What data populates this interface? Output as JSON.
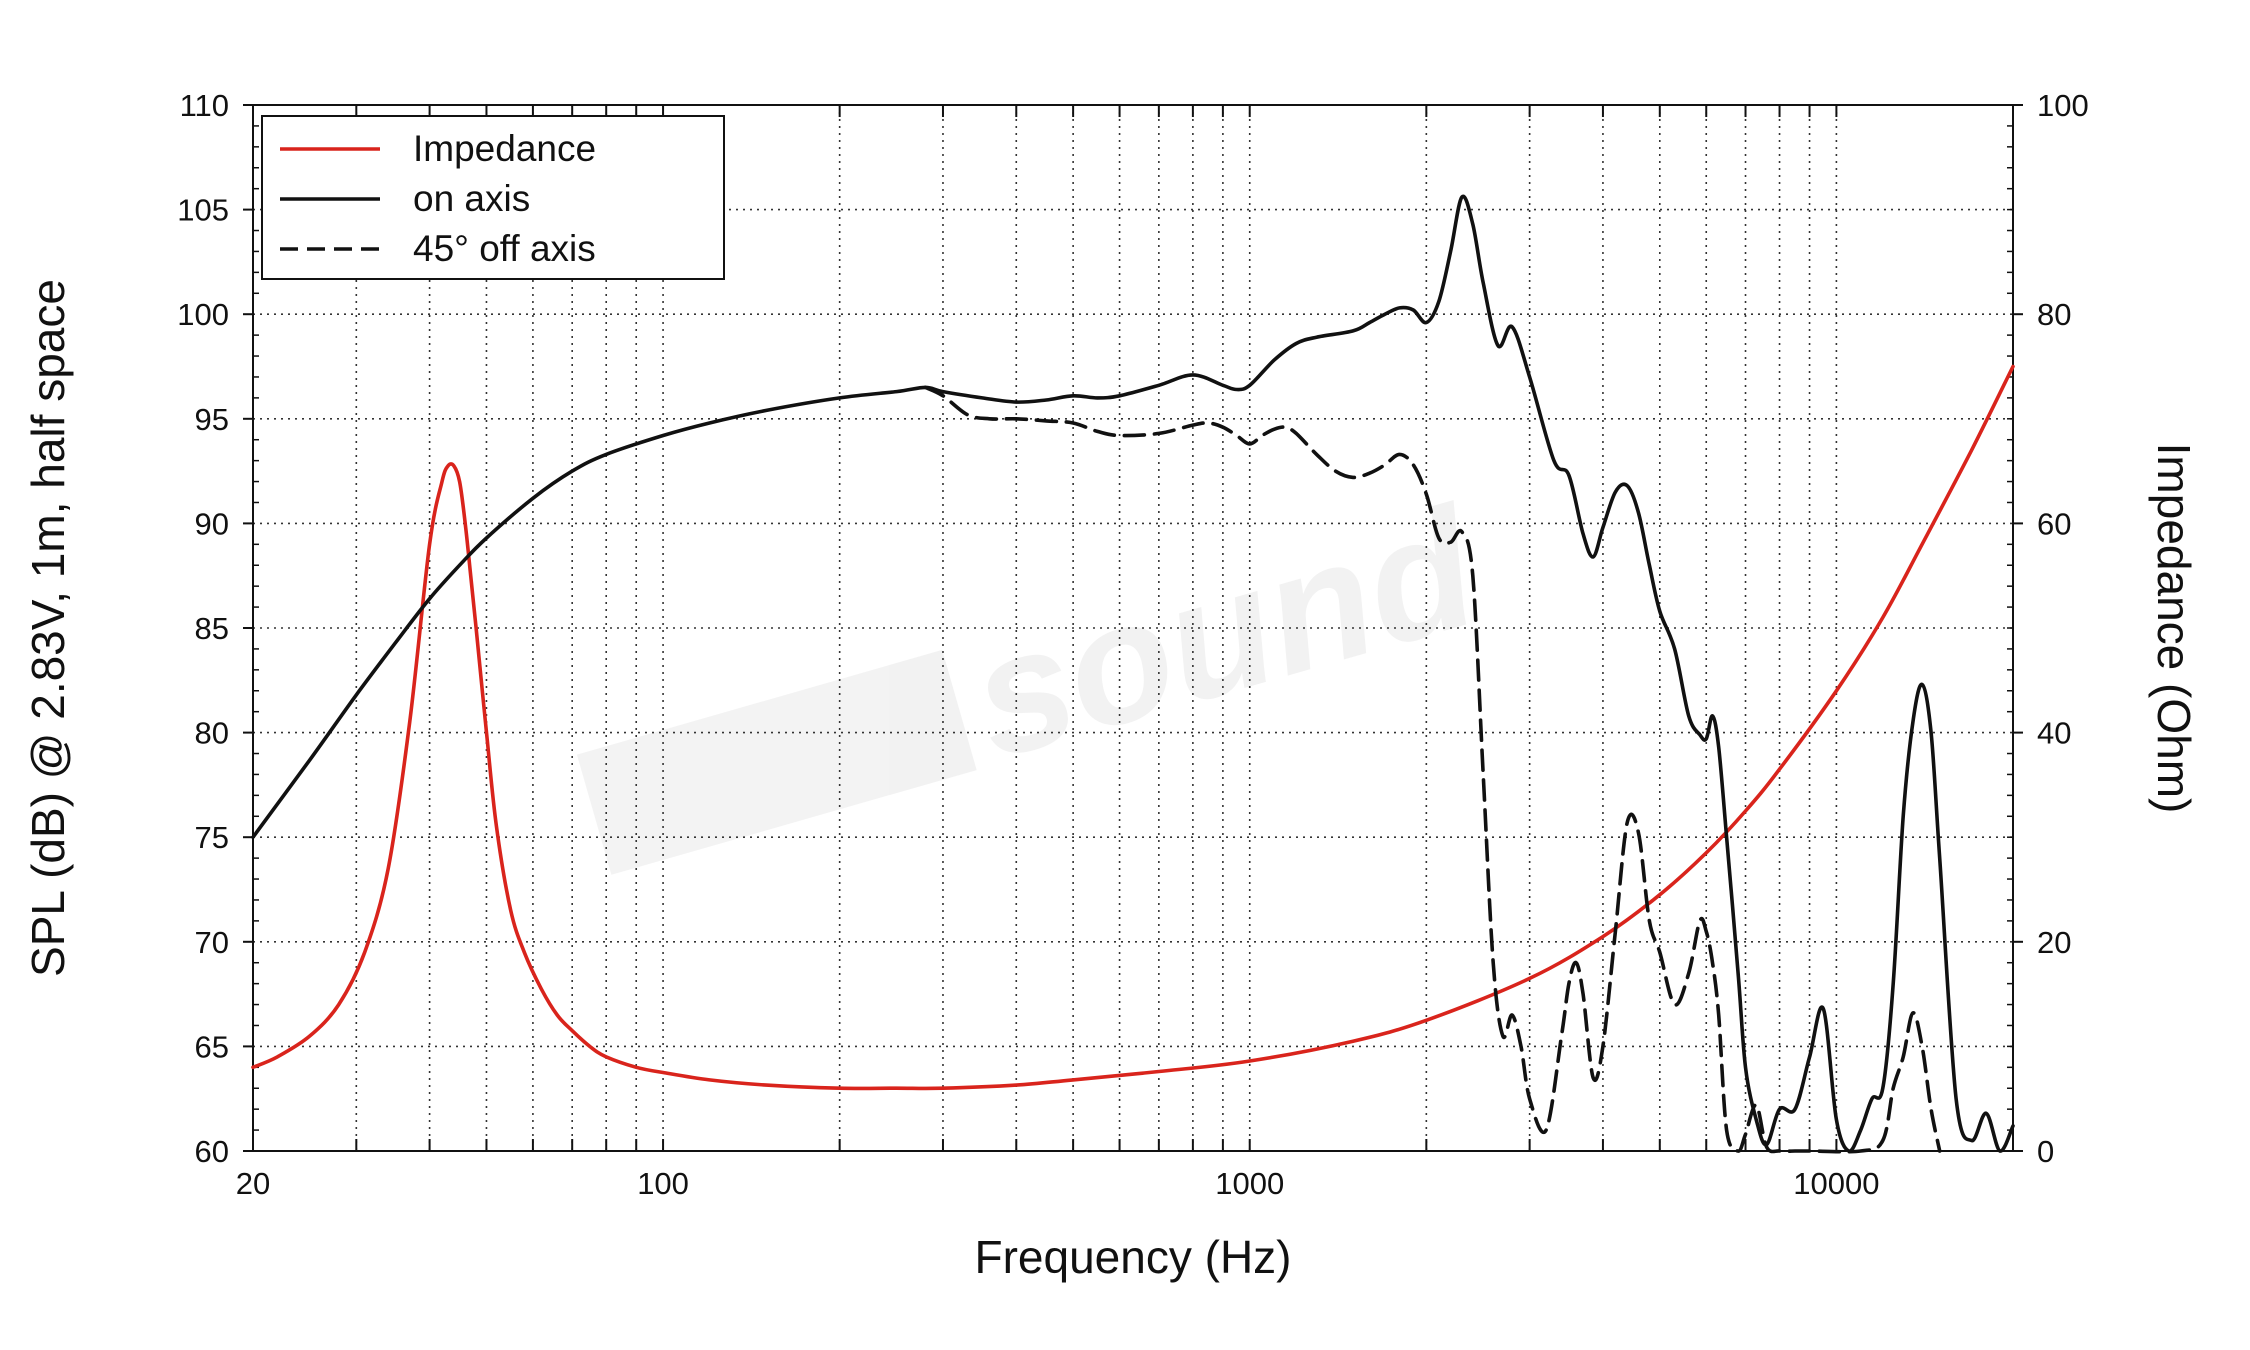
{
  "chart_data": {
    "type": "line",
    "xlabel": "Frequency (Hz)",
    "ylabel": "SPL (dB) @ 2.83V, 1m, half space",
    "y2label": "Impedance (Ohm)",
    "x_scale": "log",
    "xlim": [
      20,
      20000
    ],
    "ylim": [
      60,
      110
    ],
    "y2lim": [
      0,
      100
    ],
    "x_ticks": [
      20,
      100,
      1000,
      10000
    ],
    "x_tick_labels": [
      "20",
      "100",
      "1000",
      "10000"
    ],
    "y_ticks": [
      60,
      65,
      70,
      75,
      80,
      85,
      90,
      95,
      100,
      105,
      110
    ],
    "y2_ticks": [
      0,
      20,
      40,
      60,
      80,
      100
    ],
    "grid": true,
    "legend_position": "top-left",
    "watermark": "sound",
    "series": [
      {
        "name": "Impedance",
        "axis": "right",
        "color": "#d9241c",
        "dash": "solid",
        "x": [
          20,
          22,
          25,
          28,
          31,
          34,
          37,
          40,
          42,
          43,
          44,
          45,
          46,
          47,
          48,
          50,
          52,
          55,
          58,
          62,
          66,
          70,
          75,
          80,
          90,
          100,
          120,
          150,
          200,
          250,
          300,
          400,
          500,
          700,
          1000,
          1500,
          2000,
          3000,
          4000,
          5000,
          6000,
          7000,
          8000,
          10000,
          12000,
          14000,
          17000,
          20000
        ],
        "values": [
          8,
          9,
          11,
          14,
          19,
          27,
          41,
          58,
          64,
          65.5,
          65.5,
          64,
          60,
          55,
          50,
          40,
          31,
          23,
          19,
          15.5,
          13,
          11.5,
          10,
          9,
          8,
          7.5,
          6.8,
          6.3,
          6,
          6,
          6,
          6.3,
          6.8,
          7.6,
          8.6,
          10.5,
          12.5,
          16.5,
          20.5,
          24.5,
          28.5,
          32.5,
          36.5,
          44,
          51,
          58,
          67,
          75
        ]
      },
      {
        "name": "on axis",
        "axis": "left",
        "color": "#111111",
        "dash": "solid",
        "x": [
          20,
          25,
          30,
          35,
          40,
          45,
          50,
          60,
          70,
          80,
          100,
          120,
          150,
          200,
          250,
          280,
          300,
          350,
          400,
          450,
          500,
          550,
          600,
          700,
          800,
          900,
          950,
          1000,
          1100,
          1200,
          1300,
          1500,
          1600,
          1700,
          1800,
          1900,
          2000,
          2100,
          2200,
          2300,
          2400,
          2500,
          2650,
          2800,
          3000,
          3300,
          3500,
          3700,
          3850,
          4000,
          4200,
          4400,
          4600,
          4800,
          5000,
          5300,
          5600,
          5850,
          6000,
          6150,
          6300,
          6500,
          6800,
          7000,
          7300,
          7600,
          8000,
          8500,
          9000,
          9500,
          10000,
          10500,
          11000,
          11500,
          12000,
          12500,
          13000,
          13500,
          14000,
          14500,
          15000,
          16000,
          17000,
          18000,
          19000,
          20000
        ],
        "values": [
          75,
          78.7,
          81.8,
          84.3,
          86.4,
          88,
          89.3,
          91.2,
          92.5,
          93.3,
          94.2,
          94.8,
          95.4,
          96,
          96.3,
          96.5,
          96.3,
          96,
          95.8,
          95.9,
          96.1,
          96,
          96.1,
          96.6,
          97.1,
          96.6,
          96.4,
          96.6,
          97.8,
          98.6,
          98.9,
          99.2,
          99.6,
          100,
          100.3,
          100.2,
          99.6,
          100.6,
          103,
          105.6,
          104.3,
          101.5,
          98.5,
          99.4,
          97,
          93,
          92.3,
          89.5,
          88.4,
          89.8,
          91.5,
          91.8,
          90.5,
          88,
          85.8,
          84,
          80.8,
          79.9,
          79.7,
          80.8,
          79.3,
          75,
          68.5,
          64,
          61.5,
          60.3,
          62,
          62,
          64.5,
          66.8,
          61.5,
          60,
          61,
          62.5,
          63,
          68,
          76,
          80.5,
          82.3,
          80,
          74,
          62.5,
          60.5,
          61.8,
          60,
          61.2
        ]
      },
      {
        "name": "45° off axis",
        "axis": "left",
        "color": "#111111",
        "dash": "dashed",
        "x": [
          280,
          300,
          330,
          360,
          400,
          450,
          500,
          550,
          600,
          700,
          800,
          850,
          900,
          950,
          1000,
          1050,
          1100,
          1150,
          1200,
          1300,
          1400,
          1500,
          1600,
          1700,
          1800,
          1900,
          2000,
          2100,
          2200,
          2300,
          2400,
          2500,
          2600,
          2700,
          2800,
          2900,
          3000,
          3200,
          3400,
          3500,
          3600,
          3700,
          3850,
          4000,
          4200,
          4400,
          4600,
          4800,
          5000,
          5300,
          5600,
          5850,
          6000,
          6150,
          6300,
          6500,
          6800,
          7000,
          7300,
          7600,
          8000,
          8500,
          9000,
          11000,
          12000,
          12500,
          13000,
          13500,
          14000,
          14500,
          15000
        ],
        "values": [
          96.5,
          96.1,
          95.2,
          95,
          95,
          94.9,
          94.8,
          94.4,
          94.2,
          94.3,
          94.7,
          94.8,
          94.6,
          94.2,
          93.8,
          94.2,
          94.5,
          94.6,
          94.3,
          93.3,
          92.5,
          92.2,
          92.4,
          92.8,
          93.3,
          92.8,
          91.4,
          89.3,
          89.1,
          89.6,
          87.5,
          78,
          69,
          65.5,
          66.5,
          65,
          62.5,
          61,
          65.5,
          68,
          69,
          67.5,
          63.5,
          65,
          70.5,
          75.7,
          75.2,
          71,
          69.5,
          67,
          68.5,
          71,
          70.5,
          69,
          66.5,
          61,
          60,
          60.8,
          62.2,
          60.2,
          60,
          60,
          60,
          60,
          60.5,
          63,
          64.5,
          66.6,
          65,
          62,
          60
        ]
      }
    ]
  }
}
